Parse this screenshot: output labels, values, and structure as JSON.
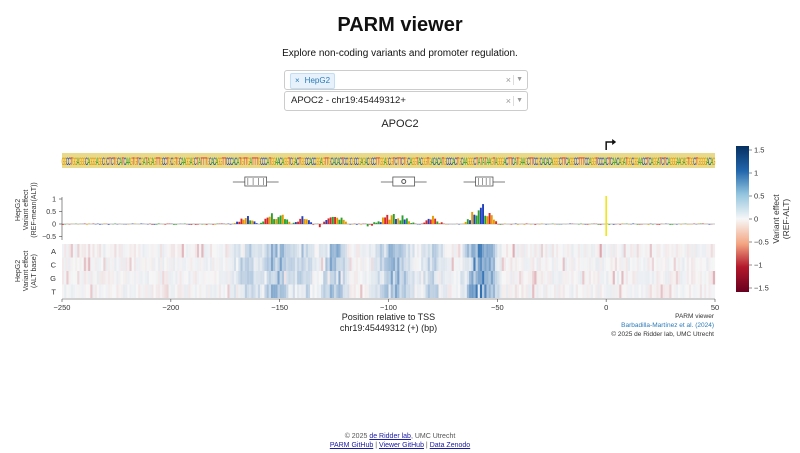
{
  "header": {
    "title": "PARM viewer",
    "subtitle": "Explore non-coding variants and promoter regulation."
  },
  "cell_select": {
    "chip_remove": "×",
    "chip_label": "HepG2",
    "clear": "×",
    "caret": "▼"
  },
  "gene_select": {
    "value": "APOC2 - chr19:45449312+",
    "clear": "×",
    "caret": "▼"
  },
  "plot": {
    "gene_title": "APOC2",
    "sequence": "GGCCTGGAGGGCAGGGAGGCGCTCTGCATCAAGTGTCGATAGAGTTGCCTGCGTGCAAGGAGCTATTTGCACAGGTTCCCACATGTTGATTTGCCCATGGAACAGGTCGACTGGCCACCGGAGTTGCACACTCCGCGCCGAGACGCCTTGGAGCGTCTTCTGCAGGTACGGTGACACATGCCCACTGCAAGGGCTATATAAGTAGGGACTTCATGAAGCTTCCGCACACAGGGCTTCAGGCCTTTCCAGGTCCCACTCAACAGATGGCGGAACCTCAGGATCTCAGGGAAGAGTGGCTGGGGACAG",
    "ylabel_effect": "HepG2\nVariant effect\n(REF-mean(ALT))",
    "ylabel_heatmap": "HepG2\nVariant effect\n(ALT base)",
    "effect_ticks": [
      "1",
      "0.5",
      "0",
      "−0.5"
    ],
    "bases": [
      "A",
      "C",
      "G",
      "T"
    ],
    "x_ticks": [
      "−250",
      "−200",
      "−150",
      "−100",
      "−50",
      "0",
      "50"
    ],
    "xlabel": "Position relative to TSS",
    "xsublabel": "chr19:45449312 (+) (bp)",
    "colorbar_title": "Variant effect\n(REF-ALT)",
    "colorbar_ticks": [
      "1.5",
      "1",
      "0.5",
      "0",
      "−0.5",
      "−1",
      "−1.5"
    ]
  },
  "credits": {
    "line1": "PARM viewer",
    "line2": "Barbadilla-Martínez et al. (2024)",
    "line3": "© 2025 de Ridder lab, UMC Utrecht"
  },
  "footer": {
    "copy_prefix": "© 2025 ",
    "lab_link": "de Ridder lab",
    "copy_suffix": ", UMC Utrecht",
    "parm_github": "PARM GitHub",
    "sep": " | ",
    "viewer_github": "Viewer GitHub",
    "zenodo": "Data Zenodo"
  },
  "colors": {
    "seq_band": "#e9d98a",
    "A": "#2ca02c",
    "C": "#1f3fbf",
    "G": "#e69b00",
    "T": "#d62728",
    "tss_line": "#f3e300",
    "pos": "#2166ac",
    "neg": "#b2182b"
  }
}
